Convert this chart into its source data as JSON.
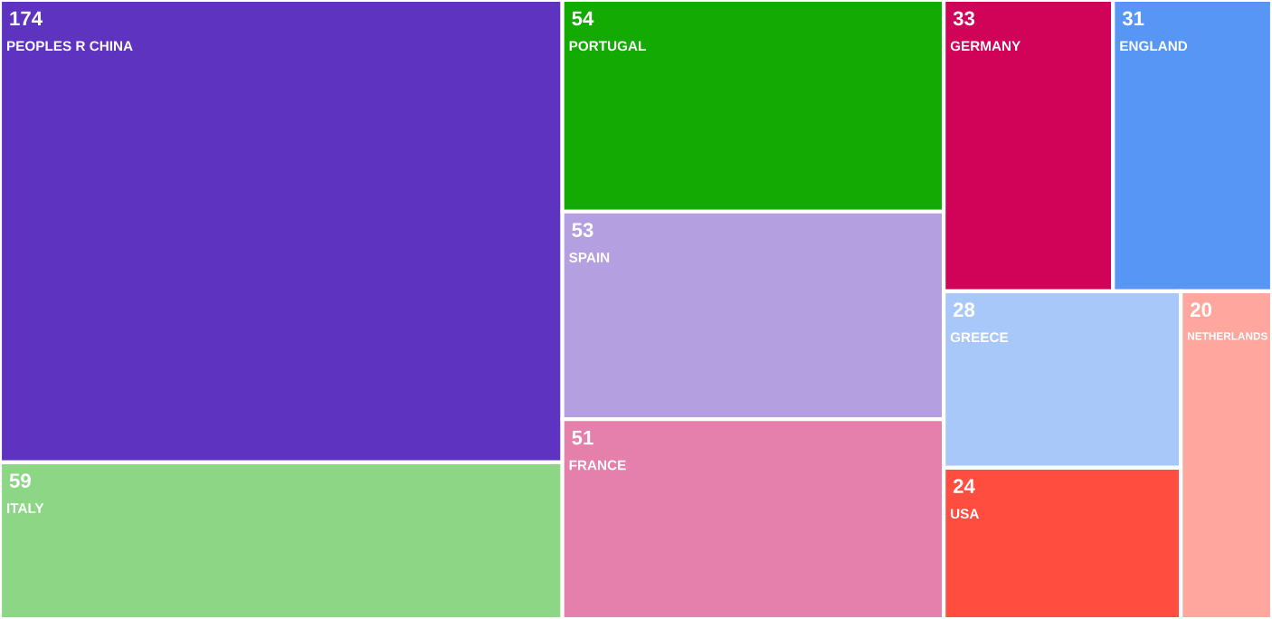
{
  "chart_data": {
    "type": "other",
    "categories": [
      "PEOPLES R CHINA",
      "ITALY",
      "PORTUGAL",
      "SPAIN",
      "FRANCE",
      "GERMANY",
      "ENGLAND",
      "GREECE",
      "USA",
      "NETHERLANDS"
    ],
    "values": [
      174,
      59,
      54,
      53,
      51,
      33,
      31,
      28,
      24,
      20
    ],
    "colors": [
      "#5e33bf",
      "#8cd685",
      "#14aa04",
      "#b49fe0",
      "#e57fab",
      "#d10358",
      "#5896f5",
      "#a9c8fa",
      "#ff4e3f",
      "#ffa79e"
    ],
    "data_labels": true
  }
}
